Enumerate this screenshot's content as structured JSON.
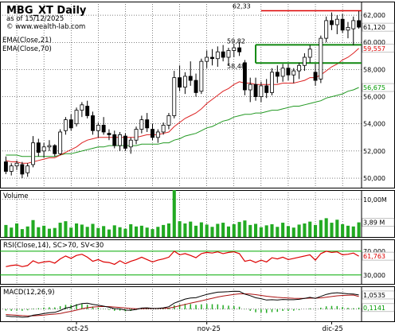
{
  "header": {
    "title": "MBG_XT Daily",
    "asof": "as of 15/12/2025",
    "site": "© www.wealth-lab.com"
  },
  "colors": {
    "up": "#00aa00",
    "down": "#dd0000",
    "candle_outline": "#000000",
    "ema21": "#dd2222",
    "ema70": "#229922",
    "resistance": "#dd0000",
    "channel": "#118811",
    "volume": "#22aa22",
    "rsi": "#dd0000",
    "rsi_levels": "#00aa00",
    "macd": "#000000",
    "signal": "#aa1111",
    "hist": "#22aa22",
    "grid": "#000000",
    "axis_bg": "#ffffff"
  },
  "chart_data": [
    {
      "type": "candlestick",
      "name": "price",
      "legend": [
        "EMA(Close,21)",
        "EMA(Close,70)"
      ],
      "yticks": [
        "62,000",
        "60,000",
        "58,000",
        "56,000",
        "54,000",
        "52,000",
        "50,000"
      ],
      "ytick_values": [
        62,
        60,
        58,
        56,
        54,
        52,
        50
      ],
      "ylim": [
        49.3,
        63.0
      ],
      "x_labels": [
        "oct-25",
        "nov-25",
        "dic-25"
      ],
      "x_label_index": [
        13,
        37,
        60
      ],
      "annotations": [
        {
          "text": "62,33",
          "index": 47,
          "y": 62.33
        },
        {
          "text": "59,82",
          "index": 46,
          "y": 59.82
        },
        {
          "text": "58,48",
          "index": 46,
          "y": 58.48
        }
      ],
      "last_labels": [
        {
          "text": "61,120",
          "y": 61.12,
          "color": "#000000",
          "fill": "#ffffff"
        },
        {
          "text": "59,557",
          "y": 59.557,
          "color": "#dd0000",
          "fill": "#ffffff"
        },
        {
          "text": "56,675",
          "y": 56.675,
          "color": "#009900",
          "fill": "#ffffff"
        }
      ],
      "candles": [
        [
          51.2,
          51.6,
          50.3,
          50.5
        ],
        [
          50.5,
          51.1,
          50.2,
          50.9
        ],
        [
          50.9,
          51.3,
          50.6,
          51.1
        ],
        [
          51.0,
          51.2,
          50.0,
          50.3
        ],
        [
          50.4,
          51.1,
          50.1,
          50.9
        ],
        [
          51.0,
          53.1,
          50.8,
          52.6
        ],
        [
          52.6,
          52.9,
          51.6,
          51.9
        ],
        [
          52.0,
          52.6,
          51.5,
          52.3
        ],
        [
          52.3,
          52.8,
          52.0,
          52.4
        ],
        [
          52.4,
          52.5,
          51.6,
          51.8
        ],
        [
          51.8,
          53.6,
          51.7,
          53.4
        ],
        [
          53.5,
          54.5,
          53.2,
          54.3
        ],
        [
          54.3,
          54.7,
          53.5,
          53.7
        ],
        [
          54.0,
          55.2,
          53.8,
          55.0
        ],
        [
          55.0,
          55.6,
          54.5,
          55.4
        ],
        [
          55.3,
          55.7,
          54.4,
          54.6
        ],
        [
          54.6,
          54.9,
          53.2,
          53.5
        ],
        [
          53.5,
          54.1,
          53.0,
          53.9
        ],
        [
          53.9,
          54.5,
          53.2,
          53.4
        ],
        [
          53.3,
          53.6,
          52.8,
          53.2
        ],
        [
          53.2,
          53.5,
          52.2,
          52.4
        ],
        [
          52.4,
          53.4,
          52.0,
          53.2
        ],
        [
          53.1,
          53.3,
          52.0,
          52.2
        ],
        [
          52.3,
          53.0,
          51.8,
          52.8
        ],
        [
          52.8,
          53.8,
          52.5,
          53.6
        ],
        [
          53.6,
          54.6,
          53.3,
          54.3
        ],
        [
          54.3,
          54.8,
          53.4,
          53.7
        ],
        [
          53.6,
          54.0,
          52.8,
          53.0
        ],
        [
          53.0,
          53.6,
          52.6,
          53.4
        ],
        [
          53.4,
          54.1,
          53.2,
          53.9
        ],
        [
          53.9,
          54.8,
          53.6,
          54.6
        ],
        [
          54.6,
          57.9,
          54.4,
          57.4
        ],
        [
          57.4,
          58.3,
          56.4,
          56.7
        ],
        [
          56.7,
          57.8,
          56.2,
          57.5
        ],
        [
          57.5,
          58.6,
          56.8,
          57.2
        ],
        [
          57.2,
          57.7,
          56.0,
          56.3
        ],
        [
          56.4,
          58.8,
          56.2,
          58.6
        ],
        [
          58.6,
          59.4,
          58.1,
          58.9
        ],
        [
          58.9,
          59.5,
          58.3,
          58.8
        ],
        [
          58.8,
          59.7,
          58.2,
          59.3
        ],
        [
          59.3,
          59.8,
          58.6,
          58.9
        ],
        [
          58.9,
          59.6,
          58.3,
          59.4
        ],
        [
          59.4,
          59.9,
          58.9,
          59.6
        ],
        [
          59.6,
          60.0,
          59.0,
          59.3
        ],
        [
          58.5,
          58.7,
          56.1,
          56.5
        ],
        [
          56.5,
          57.4,
          55.6,
          56.9
        ],
        [
          56.9,
          57.4,
          55.7,
          56.0
        ],
        [
          56.0,
          57.1,
          55.6,
          56.8
        ],
        [
          56.8,
          57.3,
          55.9,
          56.3
        ],
        [
          56.3,
          58.1,
          56.1,
          57.8
        ],
        [
          57.8,
          58.3,
          57.0,
          57.5
        ],
        [
          57.5,
          58.4,
          57.1,
          58.1
        ],
        [
          58.1,
          58.4,
          57.2,
          57.6
        ],
        [
          57.6,
          58.1,
          57.0,
          57.9
        ],
        [
          57.9,
          58.5,
          57.3,
          58.3
        ],
        [
          58.3,
          59.2,
          57.9,
          58.9
        ],
        [
          58.9,
          59.8,
          58.5,
          59.5
        ],
        [
          57.8,
          58.4,
          56.8,
          57.2
        ],
        [
          57.3,
          60.5,
          57.0,
          60.3
        ],
        [
          60.3,
          61.9,
          60.0,
          61.6
        ],
        [
          61.6,
          62.2,
          60.9,
          61.3
        ],
        [
          61.3,
          62.0,
          60.6,
          61.7
        ],
        [
          61.7,
          62.1,
          60.7,
          60.9
        ],
        [
          60.9,
          61.5,
          60.3,
          61.1
        ],
        [
          61.0,
          61.9,
          59.8,
          61.6
        ],
        [
          61.6,
          62.3,
          61.0,
          61.12
        ]
      ],
      "ema21": [
        51.3,
        51.2,
        51.2,
        51.1,
        51.1,
        51.2,
        51.3,
        51.4,
        51.5,
        51.5,
        51.7,
        51.9,
        52.1,
        52.3,
        52.6,
        52.8,
        52.9,
        53.0,
        53.0,
        53.0,
        53.0,
        53.0,
        53.0,
        53.0,
        53.0,
        53.1,
        53.2,
        53.2,
        53.2,
        53.3,
        53.4,
        53.8,
        54.1,
        54.4,
        54.6,
        54.8,
        55.1,
        55.5,
        55.8,
        56.1,
        56.4,
        56.6,
        56.9,
        57.1,
        57.0,
        57.0,
        56.9,
        56.9,
        56.9,
        56.9,
        56.9,
        57.0,
        57.0,
        57.0,
        57.1,
        57.2,
        57.4,
        57.4,
        57.6,
        57.9,
        58.2,
        58.4,
        58.7,
        58.9,
        59.2,
        59.557
      ],
      "ema70": [
        51.7,
        51.7,
        51.7,
        51.6,
        51.6,
        51.6,
        51.6,
        51.6,
        51.6,
        51.6,
        51.7,
        51.8,
        51.8,
        51.9,
        52.0,
        52.1,
        52.2,
        52.3,
        52.3,
        52.4,
        52.4,
        52.4,
        52.4,
        52.4,
        52.4,
        52.5,
        52.5,
        52.5,
        52.5,
        52.6,
        52.6,
        52.8,
        52.9,
        53.1,
        53.2,
        53.3,
        53.5,
        53.7,
        53.8,
        54.0,
        54.2,
        54.3,
        54.5,
        54.6,
        54.7,
        54.7,
        54.8,
        54.8,
        54.9,
        55.0,
        55.0,
        55.1,
        55.2,
        55.3,
        55.3,
        55.4,
        55.5,
        55.6,
        55.7,
        55.9,
        56.0,
        56.1,
        56.2,
        56.4,
        56.5,
        56.675
      ],
      "resistance": {
        "y": 62.33,
        "from": 47,
        "to": 65
      },
      "channel": {
        "upper": 59.82,
        "lower": 58.48,
        "from": 46,
        "to": 65
      }
    },
    {
      "type": "bar",
      "name": "Volume",
      "title": "Volume",
      "yticks": [
        "10,00M"
      ],
      "ytick_values": [
        10
      ],
      "ylim": [
        0,
        12.5
      ],
      "last_label": {
        "text": "3,89 M",
        "y": 3.89
      },
      "values": [
        3.2,
        2.5,
        3.6,
        2.1,
        2.8,
        4.5,
        2.6,
        3.0,
        2.2,
        2.4,
        3.8,
        4.2,
        2.5,
        3.6,
        3.3,
        2.7,
        3.5,
        2.4,
        2.9,
        2.0,
        3.1,
        2.6,
        2.2,
        3.4,
        2.8,
        3.0,
        2.5,
        2.1,
        2.7,
        3.2,
        3.6,
        12.6,
        4.2,
        3.6,
        4.1,
        3.0,
        3.9,
        3.3,
        2.7,
        3.5,
        3.8,
        2.8,
        3.4,
        4.0,
        4.4,
        3.2,
        3.5,
        2.6,
        3.1,
        3.4,
        2.7,
        3.8,
        2.9,
        2.5,
        3.3,
        3.6,
        4.1,
        3.2,
        4.5,
        5.0,
        3.8,
        4.6,
        3.4,
        3.0,
        2.8,
        3.89
      ]
    },
    {
      "type": "line",
      "name": "RSI",
      "title": "RSI(Close,14),  SC>70,  SV<30",
      "yticks": [
        "70,000",
        "30,000"
      ],
      "ytick_values": [
        70,
        30
      ],
      "ylim": [
        15,
        90
      ],
      "last_label": {
        "text": "61,763",
        "y": 61.763
      },
      "values": [
        44,
        46,
        47,
        44,
        46,
        54,
        50,
        52,
        53,
        50,
        57,
        62,
        58,
        63,
        65,
        60,
        53,
        56,
        52,
        51,
        48,
        54,
        49,
        53,
        56,
        60,
        56,
        52,
        55,
        57,
        60,
        70,
        64,
        66,
        63,
        59,
        66,
        68,
        67,
        69,
        66,
        68,
        69,
        66,
        53,
        55,
        51,
        55,
        52,
        59,
        57,
        60,
        56,
        58,
        60,
        62,
        64,
        55,
        66,
        70,
        68,
        69,
        64,
        65,
        67,
        61.763
      ]
    },
    {
      "type": "line",
      "name": "MACD",
      "title": "MACD(12,26,9)",
      "ylim": [
        -0.9,
        1.7
      ],
      "last_labels": [
        {
          "text": "1,0535",
          "y": 1.0535,
          "color": "#000000"
        },
        {
          "text": "0,1141",
          "y": 0.1141,
          "color": "#009900"
        }
      ],
      "macd": [
        -0.5,
        -0.55,
        -0.55,
        -0.6,
        -0.58,
        -0.45,
        -0.4,
        -0.32,
        -0.26,
        -0.24,
        -0.1,
        0.08,
        0.16,
        0.3,
        0.42,
        0.44,
        0.36,
        0.3,
        0.22,
        0.14,
        0.04,
        0.02,
        -0.07,
        -0.08,
        -0.02,
        0.08,
        0.1,
        0.05,
        0.06,
        0.1,
        0.18,
        0.45,
        0.6,
        0.75,
        0.83,
        0.85,
        0.98,
        1.1,
        1.18,
        1.26,
        1.28,
        1.3,
        1.33,
        1.32,
        1.12,
        1.0,
        0.85,
        0.78,
        0.68,
        0.7,
        0.68,
        0.72,
        0.7,
        0.7,
        0.73,
        0.8,
        0.88,
        0.8,
        0.95,
        1.1,
        1.18,
        1.22,
        1.18,
        1.14,
        1.12,
        1.0535
      ],
      "signal": [
        -0.4,
        -0.43,
        -0.45,
        -0.48,
        -0.5,
        -0.49,
        -0.47,
        -0.44,
        -0.4,
        -0.37,
        -0.32,
        -0.24,
        -0.16,
        -0.07,
        0.03,
        0.11,
        0.16,
        0.19,
        0.2,
        0.19,
        0.16,
        0.13,
        0.09,
        0.05,
        0.03,
        0.04,
        0.05,
        0.05,
        0.05,
        0.06,
        0.08,
        0.16,
        0.25,
        0.35,
        0.45,
        0.53,
        0.62,
        0.72,
        0.81,
        0.9,
        0.98,
        1.04,
        1.1,
        1.14,
        1.14,
        1.12,
        1.08,
        1.02,
        0.96,
        0.92,
        0.88,
        0.85,
        0.83,
        0.81,
        0.8,
        0.8,
        0.82,
        0.82,
        0.84,
        0.89,
        0.94,
        0.99,
        1.02,
        1.04,
        1.05,
        0.939
      ]
    }
  ]
}
